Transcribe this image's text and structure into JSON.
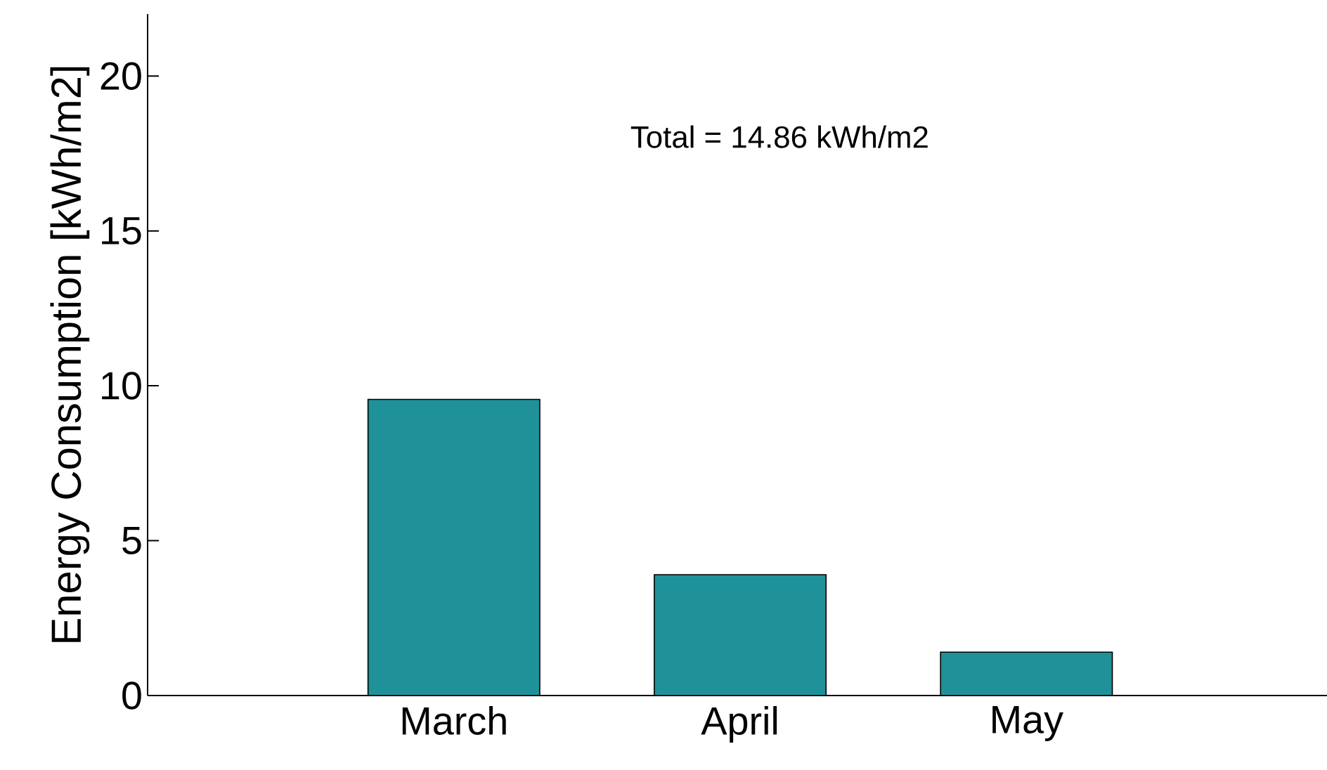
{
  "chart_data": {
    "type": "bar",
    "ylabel": "Energy Consumption [kWh/m2]",
    "categories": [
      "March",
      "April",
      "May"
    ],
    "values": [
      9.56,
      3.9,
      1.4
    ],
    "color": "#1f9199",
    "ylim": [
      0,
      22
    ],
    "yticks": [
      0,
      5,
      10,
      15,
      20
    ],
    "annotations": [
      "Total = 14.86 kWh/m2"
    ]
  }
}
